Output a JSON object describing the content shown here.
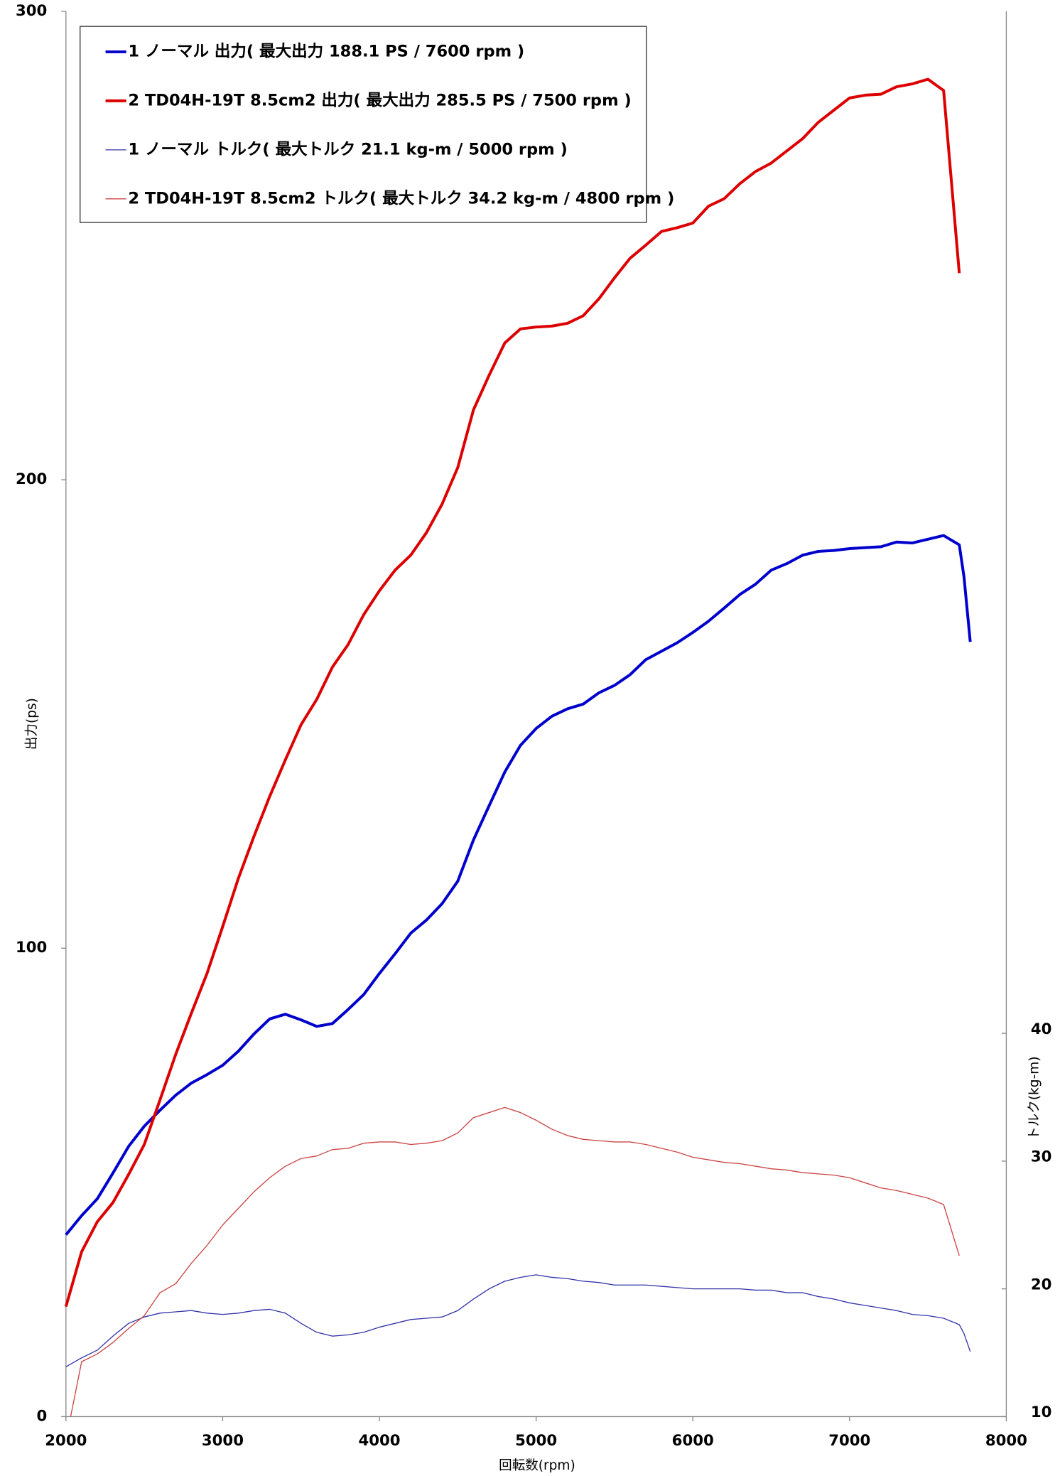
{
  "chart_data": {
    "type": "line",
    "x_label": "回転数(rpm)",
    "y_label": "出力(ps)",
    "y2_label": "トルク(kg-m)",
    "xlim": [
      2000,
      8000
    ],
    "xticks": [
      2000,
      3000,
      4000,
      5000,
      6000,
      7000,
      8000
    ],
    "ylim": [
      0,
      300
    ],
    "yticks": [
      0,
      100,
      200,
      300
    ],
    "y2lim": [
      10,
      120
    ],
    "y2ticks": [
      10,
      20,
      30,
      40
    ],
    "legend": "upper left",
    "series": [
      {
        "name": "1 ノーマル 出力( 最大出力 188.1 PS / 7600 rpm )",
        "color": "#0000cc",
        "width": 3,
        "x": [
          2000,
          2100,
          2200,
          2300,
          2400,
          2500,
          2600,
          2700,
          2800,
          2900,
          3000,
          3100,
          3200,
          3300,
          3400,
          3500,
          3600,
          3700,
          3800,
          3900,
          4000,
          4100,
          4200,
          4300,
          4400,
          4500,
          4600,
          4700,
          4800,
          4900,
          5000,
          5100,
          5200,
          5300,
          5400,
          5500,
          5600,
          5700,
          5800,
          5900,
          6000,
          6100,
          6200,
          6300,
          6400,
          6500,
          6600,
          6700,
          6800,
          6900,
          7000,
          7100,
          7200,
          7300,
          7400,
          7500,
          7600,
          7700,
          7730,
          7770
        ],
        "values": [
          38.8,
          42.9,
          46.5,
          52,
          57.7,
          62,
          65.4,
          68.6,
          71.2,
          73,
          75,
          78,
          81.7,
          84.9,
          85.9,
          84.7,
          83.3,
          83.9,
          86.9,
          90.1,
          94.6,
          98.8,
          103.2,
          106,
          109.5,
          114.3,
          123.1,
          130.4,
          137.6,
          143.3,
          146.9,
          149.5,
          151.1,
          152.1,
          154.5,
          156.1,
          158.4,
          161.6,
          163.4,
          165.2,
          167.4,
          169.8,
          172.6,
          175.5,
          177.7,
          180.7,
          182.1,
          183.9,
          184.7,
          184.9,
          185.3,
          185.5,
          185.7,
          186.7,
          186.5,
          187.3,
          188.1,
          186.1,
          179.3,
          165.4
        ]
      },
      {
        "name": "2 TD04H-19T 8.5cm2 出力( 最大出力 285.5 PS / 7500 rpm )",
        "color": "#dd0000",
        "width": 3,
        "x": [
          2000,
          2100,
          2200,
          2300,
          2400,
          2500,
          2600,
          2700,
          2800,
          2900,
          3000,
          3100,
          3200,
          3300,
          3400,
          3500,
          3600,
          3700,
          3800,
          3900,
          4000,
          4100,
          4200,
          4300,
          4400,
          4500,
          4600,
          4700,
          4800,
          4900,
          5000,
          5100,
          5200,
          5300,
          5400,
          5500,
          5600,
          5700,
          5800,
          5900,
          6000,
          6100,
          6200,
          6300,
          6400,
          6500,
          6600,
          6700,
          6800,
          6900,
          7000,
          7100,
          7200,
          7300,
          7400,
          7500,
          7600,
          7700
        ],
        "values": [
          23.5,
          35.2,
          41.6,
          45.7,
          51.7,
          58.1,
          67.6,
          77.3,
          86.1,
          94.6,
          104.6,
          114.9,
          123.9,
          132.4,
          140.2,
          147.7,
          153.1,
          160,
          164.8,
          171.2,
          176.3,
          180.7,
          183.9,
          188.7,
          194.8,
          202.6,
          214.9,
          222.3,
          229.2,
          232.2,
          232.6,
          232.8,
          233.4,
          235,
          238.6,
          243.1,
          247.3,
          250.1,
          253,
          253.8,
          254.8,
          258.4,
          260,
          263.2,
          265.8,
          267.6,
          270.2,
          272.8,
          276.3,
          278.9,
          281.5,
          282.1,
          282.3,
          283.9,
          284.5,
          285.5,
          283.1,
          244.1
        ]
      },
      {
        "name": "1 ノーマル トルク( 最大トルク 21.1 kg-m / 5000 rpm )",
        "color": "#3333aa",
        "width": 1,
        "axis": "y2",
        "x": [
          2000,
          2100,
          2200,
          2300,
          2400,
          2500,
          2600,
          2700,
          2800,
          2900,
          3000,
          3100,
          3200,
          3300,
          3400,
          3500,
          3600,
          3700,
          3800,
          3900,
          4000,
          4100,
          4200,
          4300,
          4400,
          4500,
          4600,
          4700,
          4800,
          4900,
          5000,
          5100,
          5200,
          5300,
          5400,
          5500,
          5600,
          5700,
          5800,
          5900,
          6000,
          6100,
          6200,
          6300,
          6400,
          6500,
          6600,
          6700,
          6800,
          6900,
          7000,
          7100,
          7200,
          7300,
          7400,
          7500,
          7600,
          7700,
          7730,
          7770
        ],
        "values": [
          13.9,
          14.6,
          15.2,
          16.3,
          17.3,
          17.8,
          18.1,
          18.2,
          18.3,
          18.1,
          18,
          18.1,
          18.3,
          18.4,
          18.1,
          17.3,
          16.6,
          16.3,
          16.4,
          16.6,
          17,
          17.3,
          17.6,
          17.7,
          17.8,
          18.3,
          19.2,
          20,
          20.6,
          20.9,
          21.1,
          20.9,
          20.8,
          20.6,
          20.5,
          20.3,
          20.3,
          20.3,
          20.2,
          20.1,
          20,
          20,
          20,
          20,
          19.9,
          19.9,
          19.7,
          19.7,
          19.4,
          19.2,
          18.9,
          18.7,
          18.5,
          18.3,
          18,
          17.9,
          17.7,
          17.2,
          16.5,
          15.1
        ]
      },
      {
        "name": "2 TD04H-19T 8.5cm2 トルク( 最大トルク 34.2 kg-m / 4800 rpm )",
        "color": "#cc4444",
        "width": 1,
        "axis": "y2",
        "x": [
          2030,
          2100,
          2200,
          2300,
          2400,
          2500,
          2600,
          2700,
          2800,
          2900,
          3000,
          3100,
          3200,
          3300,
          3400,
          3500,
          3600,
          3700,
          3800,
          3900,
          4000,
          4100,
          4200,
          4300,
          4400,
          4500,
          4600,
          4700,
          4800,
          4900,
          5000,
          5100,
          5200,
          5300,
          5400,
          5500,
          5600,
          5700,
          5800,
          5900,
          6000,
          6100,
          6200,
          6300,
          6400,
          6500,
          6600,
          6700,
          6800,
          6900,
          7000,
          7100,
          7200,
          7300,
          7400,
          7500,
          7600,
          7700
        ],
        "values": [
          10,
          14.3,
          14.9,
          15.8,
          16.9,
          17.9,
          19.7,
          20.4,
          22,
          23.4,
          25,
          26.3,
          27.6,
          28.7,
          29.6,
          30.2,
          30.4,
          30.9,
          31,
          31.4,
          31.5,
          31.5,
          31.3,
          31.4,
          31.6,
          32.2,
          33.4,
          33.8,
          34.2,
          33.8,
          33.2,
          32.5,
          32,
          31.7,
          31.6,
          31.5,
          31.5,
          31.3,
          31,
          30.7,
          30.3,
          30.1,
          29.9,
          29.8,
          29.6,
          29.4,
          29.3,
          29.1,
          29,
          28.9,
          28.7,
          28.3,
          27.9,
          27.7,
          27.4,
          27.1,
          26.6,
          22.6
        ]
      }
    ]
  }
}
